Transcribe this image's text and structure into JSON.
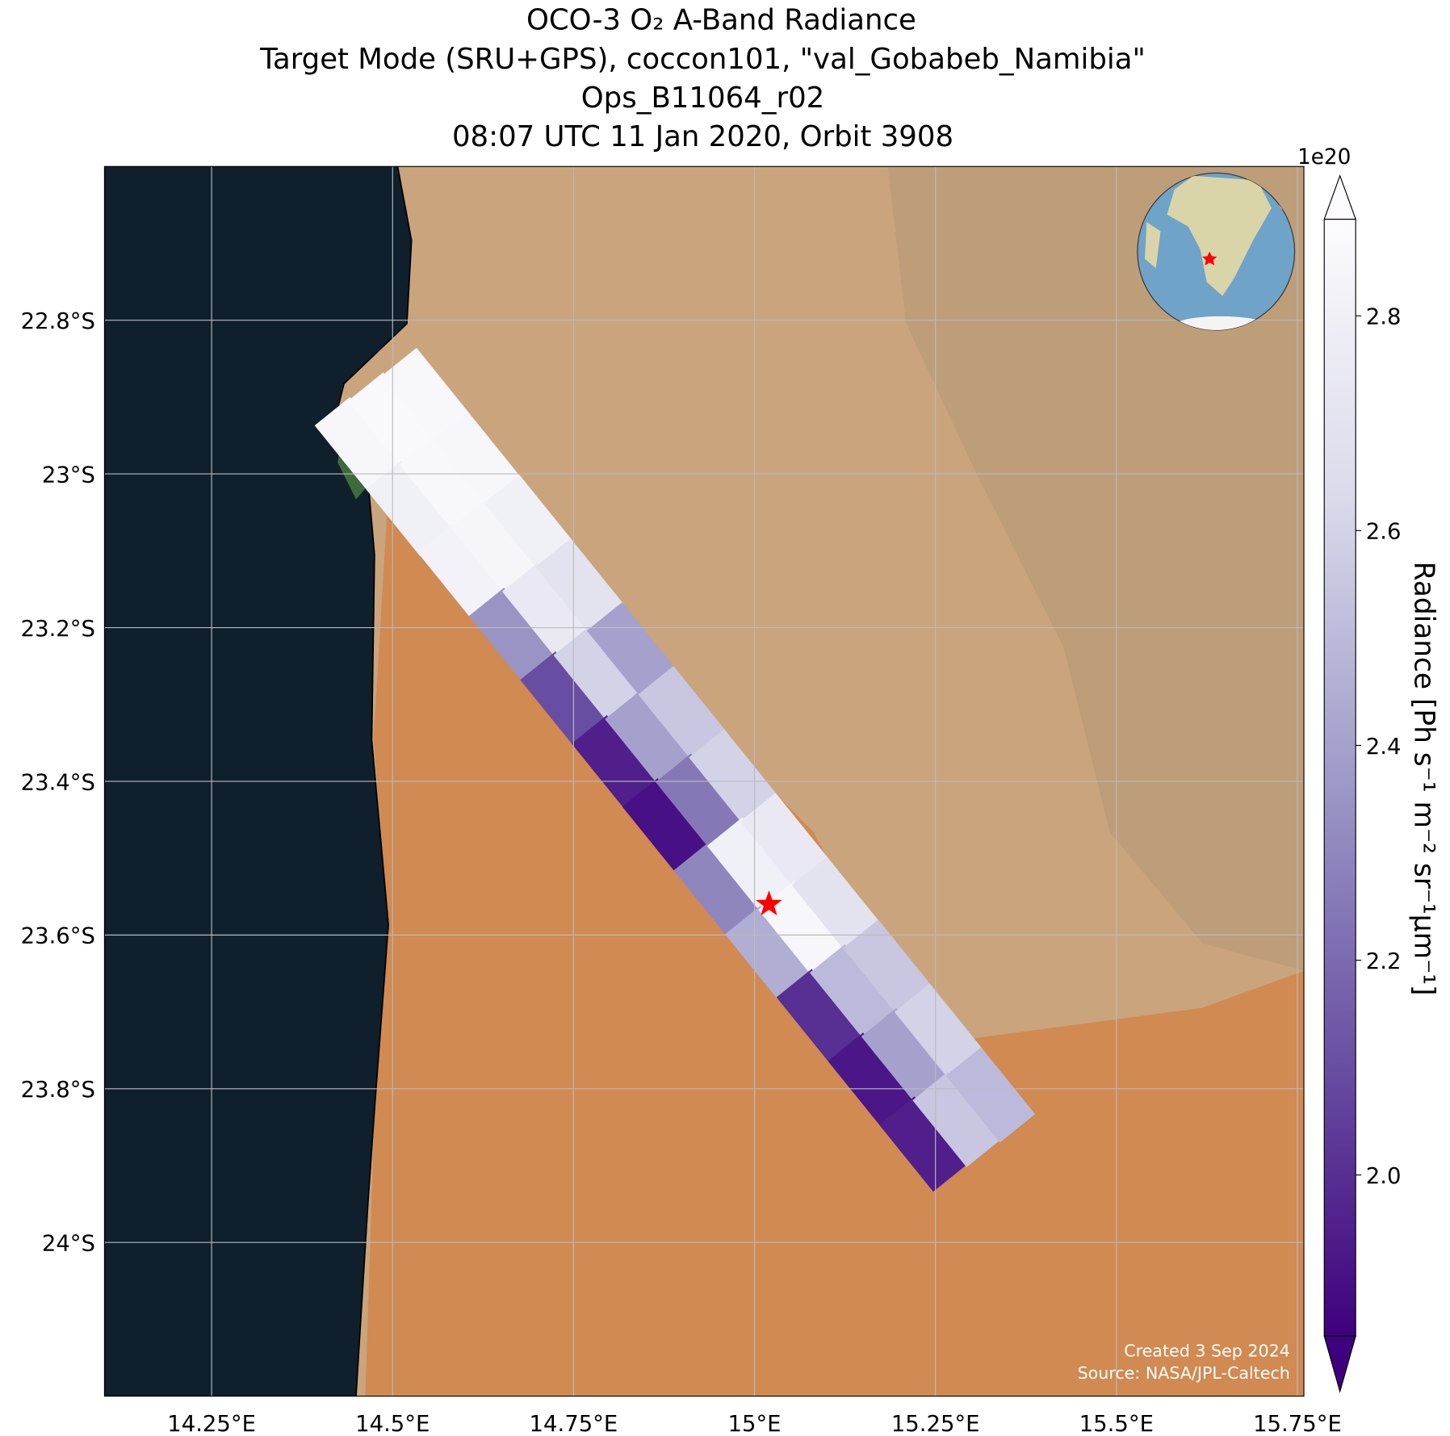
{
  "title_lines": [
    "OCO-3 O₂ A-Band Radiance",
    "Target Mode (SRU+GPS), coccon101, \"val_Gobabeb_Namibia\"",
    "Ops_B11064_r02",
    "08:07 UTC 11 Jan 2020, Orbit 3908"
  ],
  "map": {
    "xlim": [
      14.102,
      15.759
    ],
    "ylim": [
      -22.6,
      -24.2
    ],
    "xticks": [
      {
        "value": 14.25,
        "label": "14.25°E"
      },
      {
        "value": 14.5,
        "label": "14.5°E"
      },
      {
        "value": 14.75,
        "label": "14.75°E"
      },
      {
        "value": 15,
        "label": "15°E"
      },
      {
        "value": 15.25,
        "label": "15.25°E"
      },
      {
        "value": 15.5,
        "label": "15.5°E"
      },
      {
        "value": 15.75,
        "label": "15.75°E"
      }
    ],
    "yticks": [
      {
        "value": -22.8,
        "label": "22.8°S"
      },
      {
        "value": -23,
        "label": "23°S"
      },
      {
        "value": -23.2,
        "label": "23.2°S"
      },
      {
        "value": -23.4,
        "label": "23.4°S"
      },
      {
        "value": -23.6,
        "label": "23.6°S"
      },
      {
        "value": -23.8,
        "label": "23.8°S"
      },
      {
        "value": -24,
        "label": "24°S"
      }
    ],
    "grid": true,
    "cmap": [
      "#3f007d",
      "#6a51a3",
      "#9e9ac8",
      "#dadaeb",
      "#fcfbfd"
    ],
    "target": {
      "lon": 15.02,
      "lat": -23.56,
      "color": "#ff0000"
    },
    "footprints": [
      {
        "lon": 14.454,
        "lat": -22.962,
        "value": 2.85
      },
      {
        "lon": 14.5,
        "lat": -22.93,
        "value": 2.87
      },
      {
        "lon": 14.546,
        "lat": -22.898,
        "value": 2.86
      },
      {
        "lon": 14.525,
        "lat": -23.045,
        "value": 2.8
      },
      {
        "lon": 14.571,
        "lat": -23.013,
        "value": 2.86
      },
      {
        "lon": 14.617,
        "lat": -22.981,
        "value": 2.85
      },
      {
        "lon": 14.596,
        "lat": -23.127,
        "value": 2.82
      },
      {
        "lon": 14.642,
        "lat": -23.095,
        "value": 2.84
      },
      {
        "lon": 14.688,
        "lat": -23.063,
        "value": 2.8
      },
      {
        "lon": 14.667,
        "lat": -23.21,
        "value": 2.35
      },
      {
        "lon": 14.713,
        "lat": -23.178,
        "value": 2.75
      },
      {
        "lon": 14.759,
        "lat": -23.146,
        "value": 2.7
      },
      {
        "lon": 14.738,
        "lat": -23.293,
        "value": 2.1
      },
      {
        "lon": 14.784,
        "lat": -23.261,
        "value": 2.6
      },
      {
        "lon": 14.83,
        "lat": -23.229,
        "value": 2.4
      },
      {
        "lon": 14.809,
        "lat": -23.376,
        "value": 1.95
      },
      {
        "lon": 14.855,
        "lat": -23.344,
        "value": 2.4
      },
      {
        "lon": 14.901,
        "lat": -23.312,
        "value": 2.55
      },
      {
        "lon": 14.879,
        "lat": -23.458,
        "value": 1.9
      },
      {
        "lon": 14.925,
        "lat": -23.426,
        "value": 2.25
      },
      {
        "lon": 14.971,
        "lat": -23.394,
        "value": 2.6
      },
      {
        "lon": 14.95,
        "lat": -23.541,
        "value": 2.3
      },
      {
        "lon": 14.996,
        "lat": -23.509,
        "value": 2.8
      },
      {
        "lon": 15.042,
        "lat": -23.477,
        "value": 2.75
      },
      {
        "lon": 15.021,
        "lat": -23.624,
        "value": 2.45
      },
      {
        "lon": 15.067,
        "lat": -23.592,
        "value": 2.85
      },
      {
        "lon": 15.113,
        "lat": -23.56,
        "value": 2.7
      },
      {
        "lon": 15.092,
        "lat": -23.706,
        "value": 2.0
      },
      {
        "lon": 15.138,
        "lat": -23.674,
        "value": 2.5
      },
      {
        "lon": 15.184,
        "lat": -23.642,
        "value": 2.55
      },
      {
        "lon": 15.163,
        "lat": -23.789,
        "value": 1.92
      },
      {
        "lon": 15.209,
        "lat": -23.757,
        "value": 2.4
      },
      {
        "lon": 15.255,
        "lat": -23.725,
        "value": 2.6
      },
      {
        "lon": 15.234,
        "lat": -23.872,
        "value": 1.95
      },
      {
        "lon": 15.28,
        "lat": -23.84,
        "value": 2.55
      },
      {
        "lon": 15.326,
        "lat": -23.808,
        "value": 2.5
      }
    ]
  },
  "colorbar": {
    "label": "Radiance [Ph s⁻¹ m⁻² sr⁻¹μm⁻¹]",
    "offset_label": "1e20",
    "clim": [
      1.85,
      2.89
    ],
    "ticks": [
      {
        "value": 2,
        "label": "2.0"
      },
      2.2,
      2.4,
      2.6,
      2.8
    ]
  },
  "credits": [
    "Created 3 Sep 2024",
    "Source: NASA/JPL-Caltech"
  ]
}
